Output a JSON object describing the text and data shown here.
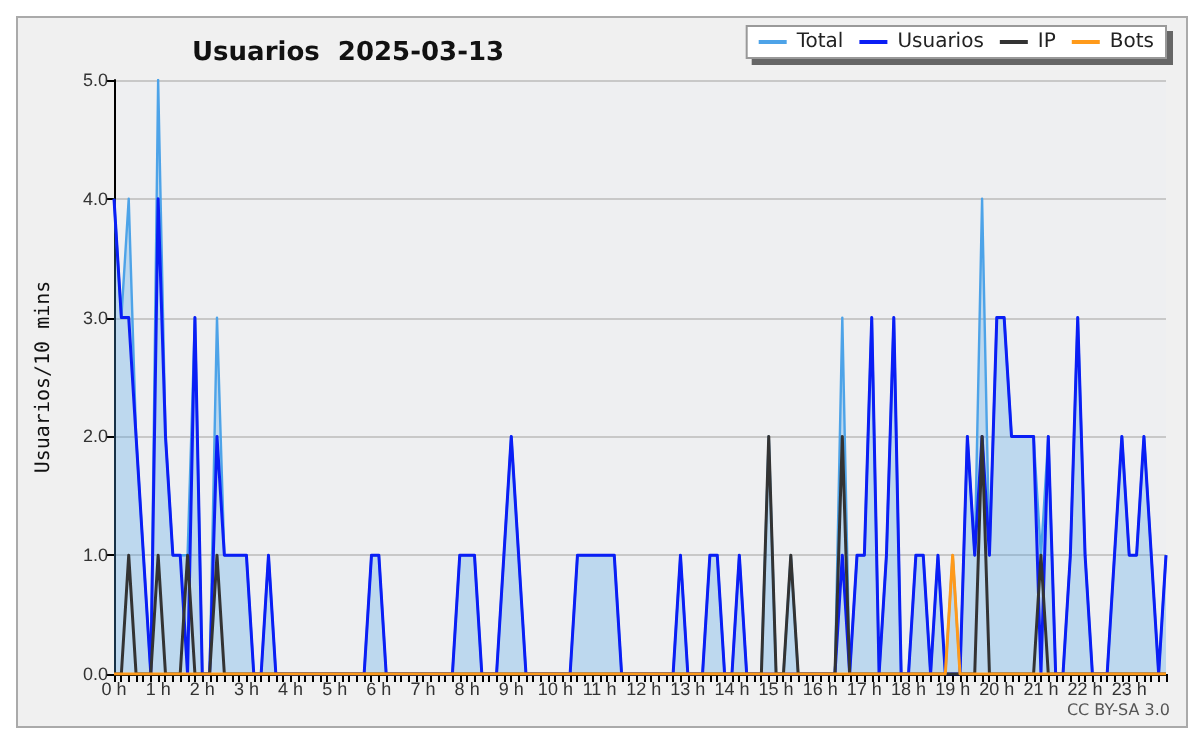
{
  "chart_data": {
    "type": "line",
    "title": "Usuarios  2025-03-13",
    "ylabel": "Usuarios/10 mins",
    "categories": [
      "0 h",
      null,
      null,
      null,
      null,
      null,
      "1 h",
      null,
      null,
      null,
      null,
      null,
      "2 h",
      null,
      null,
      null,
      null,
      null,
      "3 h",
      null,
      null,
      null,
      null,
      null,
      "4 h",
      null,
      null,
      null,
      null,
      null,
      "5 h",
      null,
      null,
      null,
      null,
      null,
      "6 h",
      null,
      null,
      null,
      null,
      null,
      "7 h",
      null,
      null,
      null,
      null,
      null,
      "8 h",
      null,
      null,
      null,
      null,
      null,
      "9 h",
      null,
      null,
      null,
      null,
      null,
      "10 h",
      null,
      null,
      null,
      null,
      null,
      "11 h",
      null,
      null,
      null,
      null,
      null,
      "12 h",
      null,
      null,
      null,
      null,
      null,
      "13 h",
      null,
      null,
      null,
      null,
      null,
      "14 h",
      null,
      null,
      null,
      null,
      null,
      "15 h",
      null,
      null,
      null,
      null,
      null,
      "16 h",
      null,
      null,
      null,
      null,
      null,
      "17 h",
      null,
      null,
      null,
      null,
      null,
      "18 h",
      null,
      null,
      null,
      null,
      null,
      "19 h",
      null,
      null,
      null,
      null,
      null,
      "20 h",
      null,
      null,
      null,
      null,
      null,
      "21 h",
      null,
      null,
      null,
      null,
      null,
      "22 h",
      null,
      null,
      null,
      null,
      null,
      "23 h",
      null,
      null,
      null,
      null,
      null
    ],
    "series": [
      {
        "name": "Total",
        "type": "area",
        "color": "#4da3e8",
        "values": [
          4,
          3,
          4,
          2,
          1,
          0,
          5,
          2,
          1,
          1,
          1,
          3,
          0,
          0,
          3,
          1,
          1,
          1,
          1,
          0,
          0,
          1,
          0,
          0,
          0,
          0,
          0,
          0,
          0,
          0,
          0,
          0,
          0,
          0,
          0,
          1,
          1,
          0,
          0,
          0,
          0,
          0,
          0,
          0,
          0,
          0,
          0,
          1,
          1,
          1,
          0,
          0,
          0,
          1,
          2,
          1,
          0,
          0,
          0,
          0,
          0,
          0,
          0,
          1,
          1,
          1,
          1,
          1,
          1,
          0,
          0,
          0,
          0,
          0,
          0,
          0,
          0,
          1,
          0,
          0,
          0,
          1,
          1,
          0,
          0,
          1,
          0,
          0,
          0,
          2,
          0,
          0,
          1,
          0,
          0,
          0,
          0,
          0,
          0,
          3,
          0,
          1,
          1,
          3,
          0,
          1,
          3,
          0,
          0,
          1,
          1,
          0,
          1,
          0,
          1,
          0,
          2,
          1,
          4,
          1,
          3,
          3,
          2,
          2,
          2,
          2,
          1,
          2,
          0,
          0,
          1,
          3,
          1,
          0,
          0,
          0,
          1,
          2,
          1,
          1,
          2,
          1,
          0,
          1
        ]
      },
      {
        "name": "Usuarios",
        "type": "line",
        "color": "#0a1ef5",
        "values": [
          4,
          3,
          3,
          2,
          1,
          0,
          4,
          2,
          1,
          1,
          0,
          3,
          0,
          0,
          2,
          1,
          1,
          1,
          1,
          0,
          0,
          1,
          0,
          0,
          0,
          0,
          0,
          0,
          0,
          0,
          0,
          0,
          0,
          0,
          0,
          1,
          1,
          0,
          0,
          0,
          0,
          0,
          0,
          0,
          0,
          0,
          0,
          1,
          1,
          1,
          0,
          0,
          0,
          1,
          2,
          1,
          0,
          0,
          0,
          0,
          0,
          0,
          0,
          1,
          1,
          1,
          1,
          1,
          1,
          0,
          0,
          0,
          0,
          0,
          0,
          0,
          0,
          1,
          0,
          0,
          0,
          1,
          1,
          0,
          0,
          1,
          0,
          0,
          0,
          0,
          0,
          0,
          0,
          0,
          0,
          0,
          0,
          0,
          0,
          1,
          0,
          1,
          1,
          3,
          0,
          1,
          3,
          0,
          0,
          1,
          1,
          0,
          1,
          0,
          0,
          0,
          2,
          1,
          2,
          1,
          3,
          3,
          2,
          2,
          2,
          2,
          0,
          2,
          0,
          0,
          1,
          3,
          1,
          0,
          0,
          0,
          1,
          2,
          1,
          1,
          2,
          1,
          0,
          1
        ]
      },
      {
        "name": "IP",
        "type": "line",
        "color": "#333333",
        "values": [
          0,
          0,
          1,
          0,
          0,
          0,
          1,
          0,
          0,
          0,
          1,
          0,
          0,
          0,
          1,
          0,
          0,
          0,
          0,
          0,
          0,
          0,
          0,
          0,
          0,
          0,
          0,
          0,
          0,
          0,
          0,
          0,
          0,
          0,
          0,
          0,
          0,
          0,
          0,
          0,
          0,
          0,
          0,
          0,
          0,
          0,
          0,
          0,
          0,
          0,
          0,
          0,
          0,
          0,
          0,
          0,
          0,
          0,
          0,
          0,
          0,
          0,
          0,
          0,
          0,
          0,
          0,
          0,
          0,
          0,
          0,
          0,
          0,
          0,
          0,
          0,
          0,
          0,
          0,
          0,
          0,
          0,
          0,
          0,
          0,
          0,
          0,
          0,
          0,
          2,
          0,
          0,
          1,
          0,
          0,
          0,
          0,
          0,
          0,
          2,
          0,
          0,
          0,
          0,
          0,
          0,
          0,
          0,
          0,
          0,
          0,
          0,
          0,
          0,
          0,
          0,
          0,
          0,
          2,
          0,
          0,
          0,
          0,
          0,
          0,
          0,
          1,
          0,
          0,
          0,
          0,
          0,
          0,
          0,
          0,
          0,
          0,
          0,
          0,
          0,
          0,
          0,
          0,
          0
        ]
      },
      {
        "name": "Bots",
        "type": "line",
        "color": "#ff9a1a",
        "values": [
          0,
          0,
          0,
          0,
          0,
          0,
          0,
          0,
          0,
          0,
          0,
          0,
          0,
          0,
          0,
          0,
          0,
          0,
          0,
          0,
          0,
          0,
          0,
          0,
          0,
          0,
          0,
          0,
          0,
          0,
          0,
          0,
          0,
          0,
          0,
          0,
          0,
          0,
          0,
          0,
          0,
          0,
          0,
          0,
          0,
          0,
          0,
          0,
          0,
          0,
          0,
          0,
          0,
          0,
          0,
          0,
          0,
          0,
          0,
          0,
          0,
          0,
          0,
          0,
          0,
          0,
          0,
          0,
          0,
          0,
          0,
          0,
          0,
          0,
          0,
          0,
          0,
          0,
          0,
          0,
          0,
          0,
          0,
          0,
          0,
          0,
          0,
          0,
          0,
          0,
          0,
          0,
          0,
          0,
          0,
          0,
          0,
          0,
          0,
          0,
          0,
          0,
          0,
          0,
          0,
          0,
          0,
          0,
          0,
          0,
          0,
          0,
          0,
          0,
          1,
          0,
          0,
          0,
          0,
          0,
          0,
          0,
          0,
          0,
          0,
          0,
          0,
          0,
          0,
          0,
          0,
          0,
          0,
          0,
          0,
          0,
          0,
          0,
          0,
          0,
          0,
          0,
          0,
          0
        ]
      }
    ],
    "ylim": [
      0,
      5
    ],
    "yticks": [
      {
        "value": 0,
        "label": "0.0"
      },
      {
        "value": 1,
        "label": "1.0"
      },
      {
        "value": 2,
        "label": "2.0"
      },
      {
        "value": 3,
        "label": "3.0"
      },
      {
        "value": 4,
        "label": "4.0"
      },
      {
        "value": 5,
        "label": "5.0"
      }
    ],
    "grid": "y",
    "legend": "top right",
    "marker": "none",
    "line_style": "solid",
    "annotations": [
      "CC BY-SA 3.0"
    ]
  }
}
